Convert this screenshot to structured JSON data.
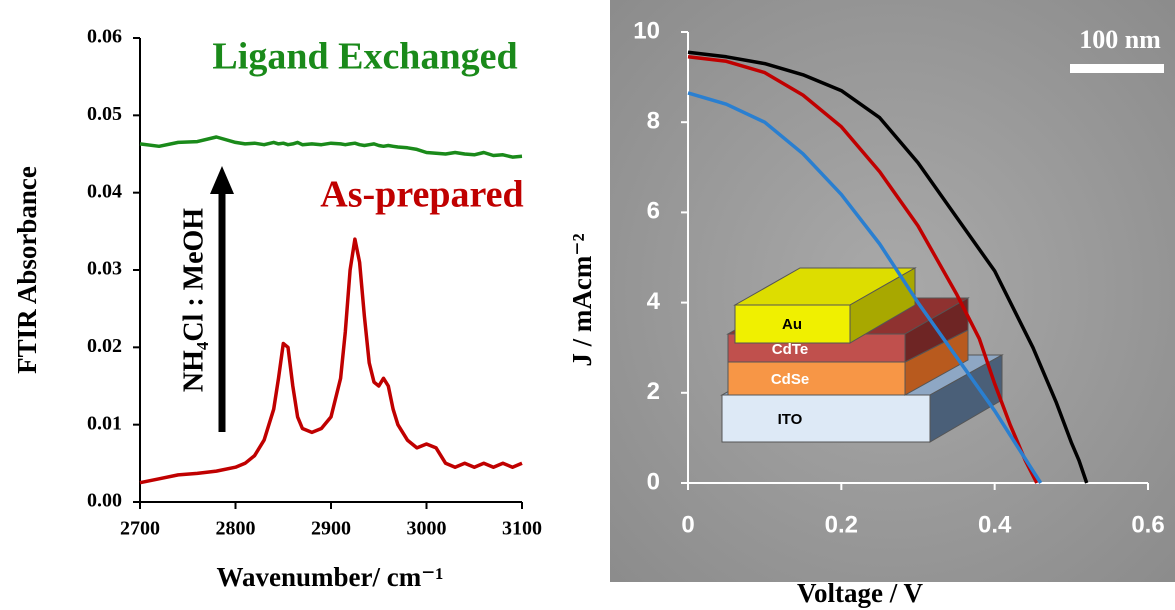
{
  "chart_data": [
    {
      "type": "line",
      "x_label": "Wavenumber/  cm⁻¹",
      "y_label": "FTIR Absorbance",
      "annotations": [
        "Ligand Exchanged",
        "As-prepared",
        "NH₄Cl : MeOH"
      ],
      "x": [
        2700,
        2720,
        2740,
        2760,
        2780,
        2800,
        2810,
        2820,
        2830,
        2840,
        2845,
        2850,
        2855,
        2860,
        2865,
        2870,
        2880,
        2890,
        2900,
        2910,
        2915,
        2920,
        2925,
        2930,
        2935,
        2940,
        2945,
        2950,
        2955,
        2960,
        2965,
        2970,
        2980,
        2990,
        3000,
        3010,
        3020,
        3030,
        3040,
        3050,
        3060,
        3070,
        3080,
        3090,
        3100
      ],
      "series": [
        {
          "name": "Ligand Exchanged",
          "color": "#1a8a1a",
          "values": [
            0.0463,
            0.046,
            0.0465,
            0.0466,
            0.0472,
            0.0465,
            0.0463,
            0.0464,
            0.0462,
            0.0465,
            0.0463,
            0.0464,
            0.0462,
            0.0463,
            0.0465,
            0.0462,
            0.0463,
            0.0462,
            0.0464,
            0.0463,
            0.0462,
            0.0463,
            0.0464,
            0.0462,
            0.0461,
            0.0462,
            0.0463,
            0.0461,
            0.046,
            0.0461,
            0.046,
            0.0459,
            0.0458,
            0.0456,
            0.0452,
            0.0451,
            0.045,
            0.0452,
            0.045,
            0.0449,
            0.0452,
            0.0448,
            0.0449,
            0.0446,
            0.0447
          ]
        },
        {
          "name": "As-prepared",
          "color": "#c00000",
          "values": [
            0.0025,
            0.003,
            0.0035,
            0.0037,
            0.004,
            0.0045,
            0.005,
            0.006,
            0.008,
            0.012,
            0.016,
            0.0205,
            0.02,
            0.015,
            0.011,
            0.0095,
            0.009,
            0.0095,
            0.011,
            0.016,
            0.022,
            0.03,
            0.034,
            0.031,
            0.024,
            0.018,
            0.0155,
            0.015,
            0.016,
            0.015,
            0.012,
            0.01,
            0.008,
            0.007,
            0.0075,
            0.007,
            0.005,
            0.0045,
            0.005,
            0.0045,
            0.005,
            0.0045,
            0.005,
            0.0045,
            0.005
          ]
        }
      ],
      "xlim": [
        2700,
        3100
      ],
      "xticks": [
        2700,
        2800,
        2900,
        3000,
        3100
      ],
      "ylim": [
        0,
        0.06
      ],
      "yticks": [
        {
          "value": 0,
          "label": "0.00"
        },
        {
          "value": 0.01,
          "label": "0.01"
        },
        {
          "value": 0.02,
          "label": "0.02"
        },
        {
          "value": 0.03,
          "label": "0.03"
        },
        {
          "value": 0.04,
          "label": "0.04"
        },
        {
          "value": 0.05,
          "label": "0.05"
        },
        {
          "value": 0.06,
          "label": "0.06"
        }
      ]
    },
    {
      "type": "line",
      "x_label": "Voltage / V",
      "y_label": "J / mAcm⁻²",
      "scale_bar": "100 nm",
      "inset_labels": [
        "Au",
        "CdTe",
        "CdSe",
        "ITO"
      ],
      "series": [
        {
          "color": "#000000",
          "x": [
            0,
            0.05,
            0.1,
            0.15,
            0.2,
            0.25,
            0.3,
            0.35,
            0.4,
            0.45,
            0.48,
            0.5,
            0.51,
            0.52
          ],
          "values": [
            9.55,
            9.45,
            9.3,
            9.05,
            8.7,
            8.1,
            7.1,
            5.9,
            4.7,
            3.0,
            1.8,
            0.9,
            0.5,
            0
          ]
        },
        {
          "color": "#c00000",
          "x": [
            0,
            0.05,
            0.1,
            0.15,
            0.2,
            0.25,
            0.3,
            0.35,
            0.38,
            0.4,
            0.42,
            0.44,
            0.455
          ],
          "values": [
            9.45,
            9.35,
            9.1,
            8.6,
            7.9,
            6.9,
            5.7,
            4.2,
            3.2,
            2.2,
            1.3,
            0.5,
            0
          ]
        },
        {
          "color": "#2a7fd0",
          "x": [
            0,
            0.05,
            0.1,
            0.15,
            0.2,
            0.25,
            0.3,
            0.35,
            0.4,
            0.43,
            0.46
          ],
          "values": [
            8.65,
            8.4,
            8.0,
            7.3,
            6.4,
            5.3,
            4.0,
            2.8,
            1.6,
            0.8,
            0
          ]
        }
      ],
      "xlim": [
        0,
        0.6
      ],
      "xticks": [
        0,
        0.2,
        0.4,
        0.6
      ],
      "ylim": [
        0,
        10
      ],
      "yticks": [
        0,
        2,
        4,
        6,
        8,
        10
      ]
    }
  ]
}
